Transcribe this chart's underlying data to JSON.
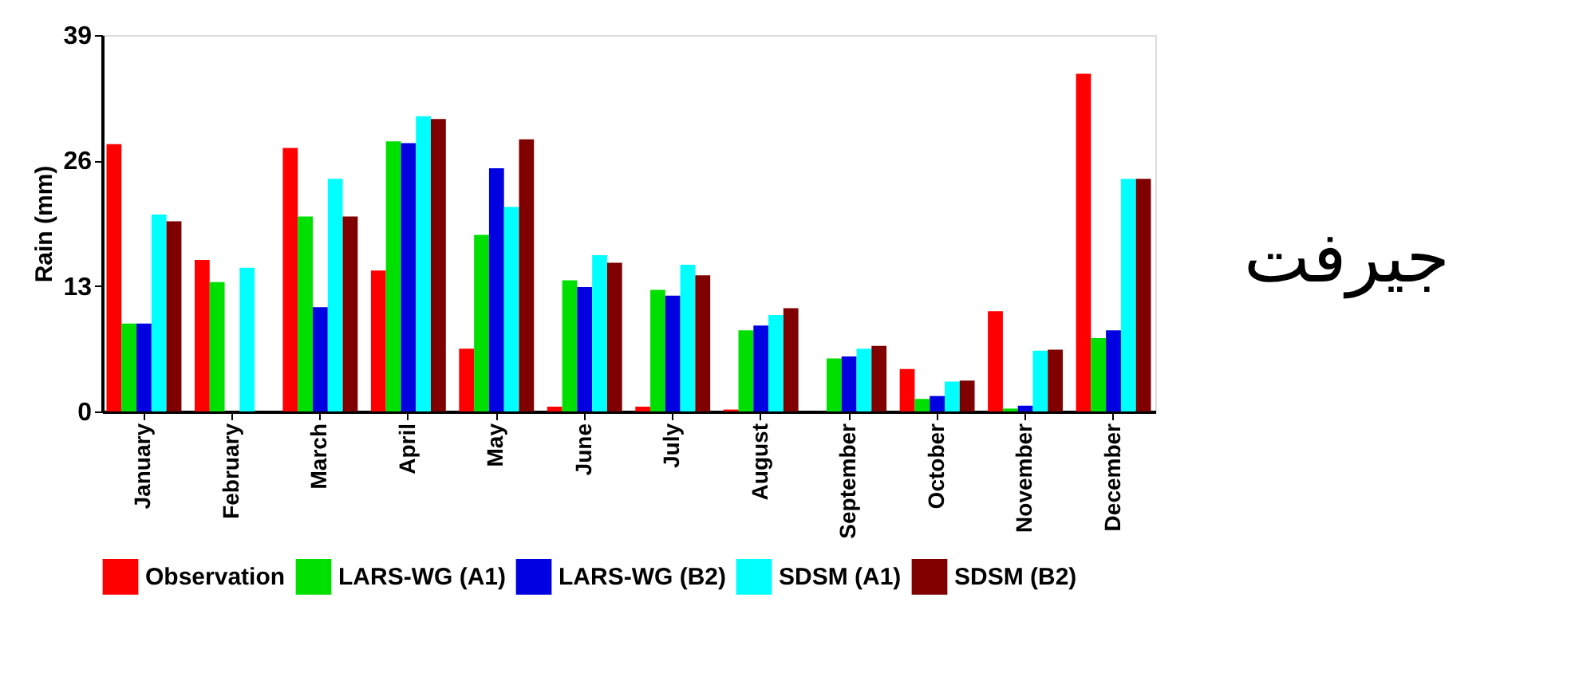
{
  "chart_data": {
    "type": "bar",
    "ylabel": "Rain (mm)",
    "annotations": [
      "جیرفت"
    ],
    "categories": [
      "January",
      "February",
      "March",
      "April",
      "May",
      "June",
      "July",
      "August",
      "September",
      "October",
      "November",
      "December"
    ],
    "ylim": [
      0,
      39
    ],
    "yticks": [
      0,
      13,
      26,
      39
    ],
    "grid": false,
    "legend": "bottom",
    "series": [
      {
        "name": "Observation",
        "color": "#ff0000",
        "values": [
          27.7,
          15.7,
          27.3,
          14.6,
          6.5,
          0.5,
          0.5,
          0.2,
          0,
          4.4,
          10.4,
          35.0
        ]
      },
      {
        "name": "LARS-WG (A1)",
        "color": "#00e000",
        "values": [
          9.1,
          13.4,
          20.2,
          28.0,
          18.3,
          13.6,
          12.6,
          8.4,
          5.5,
          1.3,
          0.3,
          7.6
        ]
      },
      {
        "name": "LARS-WG (B2)",
        "color": "#0000e0",
        "values": [
          9.1,
          0,
          10.8,
          27.8,
          25.2,
          12.9,
          12.0,
          8.9,
          5.7,
          1.6,
          0.6,
          8.4
        ]
      },
      {
        "name": "SDSM (A1)",
        "color": "#00ffff",
        "values": [
          20.4,
          14.9,
          24.1,
          30.6,
          21.2,
          16.2,
          15.2,
          10.0,
          6.5,
          3.1,
          6.3,
          24.1
        ]
      },
      {
        "name": "SDSM (B2)",
        "color": "#800000",
        "values": [
          19.7,
          0,
          20.2,
          30.3,
          28.2,
          15.4,
          14.1,
          10.7,
          6.8,
          3.2,
          6.4,
          24.1
        ]
      }
    ]
  }
}
